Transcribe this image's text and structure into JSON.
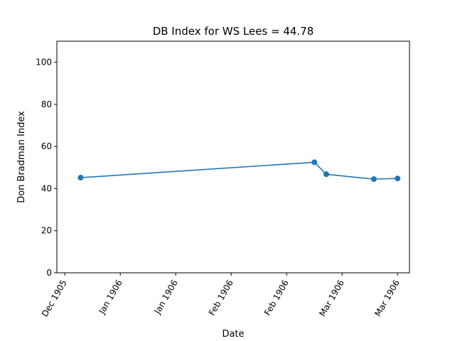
{
  "chart_data": {
    "type": "line",
    "title": "DB Index for WS Lees = 44.78",
    "xlabel": "Date",
    "ylabel": "Don Bradman Index",
    "ylim": [
      0,
      110
    ],
    "yticks": [
      0,
      20,
      40,
      60,
      80,
      100
    ],
    "xlim": [
      "1905-12-30",
      "1906-03-29"
    ],
    "xticks": [
      {
        "date": "1906-01-01",
        "label": "Dec 1905"
      },
      {
        "date": "1906-01-15",
        "label": "Jan 1906"
      },
      {
        "date": "1906-01-29",
        "label": "Jan 1906"
      },
      {
        "date": "1906-02-12",
        "label": "Feb 1906"
      },
      {
        "date": "1906-02-26",
        "label": "Feb 1906"
      },
      {
        "date": "1906-03-12",
        "label": "Mar 1906"
      },
      {
        "date": "1906-03-26",
        "label": "Mar 1906"
      }
    ],
    "grid": false,
    "series": [
      {
        "color": "#1f77b4",
        "marker": "circle",
        "points": [
          {
            "x": "1906-01-05",
            "y": 45.2
          },
          {
            "x": "1906-03-05",
            "y": 52.5
          },
          {
            "x": "1906-03-08",
            "y": 46.8
          },
          {
            "x": "1906-03-20",
            "y": 44.5
          },
          {
            "x": "1906-03-26",
            "y": 44.8
          }
        ]
      }
    ]
  }
}
